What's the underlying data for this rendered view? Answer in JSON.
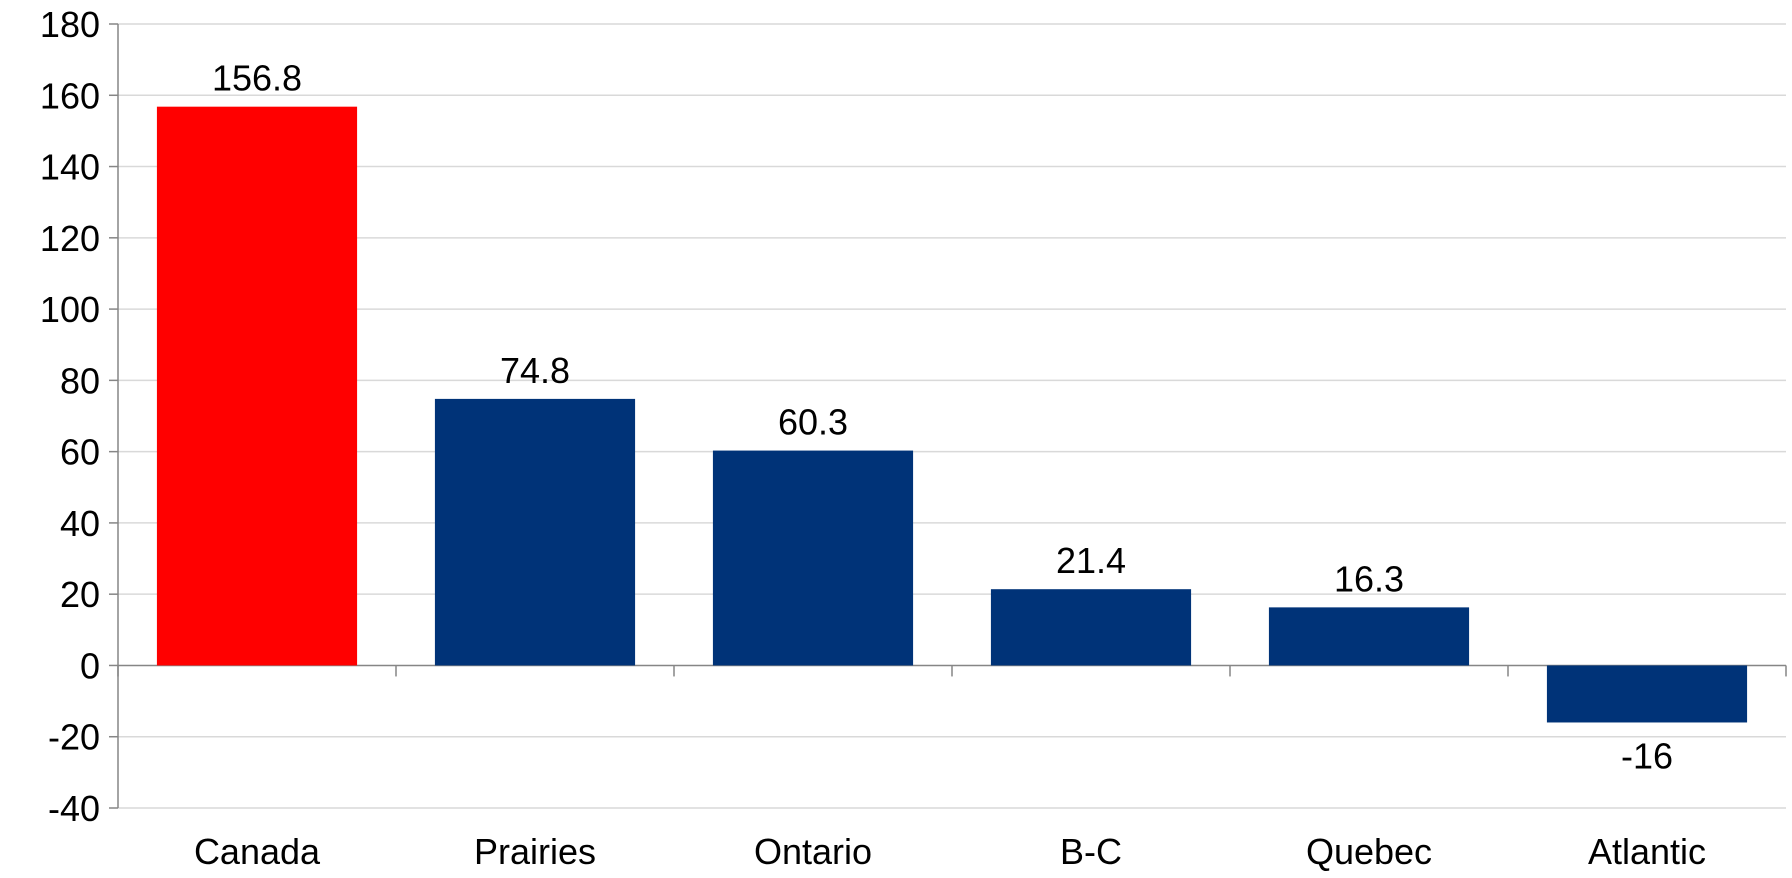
{
  "chart_data": {
    "type": "bar",
    "categories": [
      "Canada",
      "Prairies",
      "Ontario",
      "B-C",
      "Quebec",
      "Atlantic"
    ],
    "values": [
      156.8,
      74.8,
      60.3,
      21.4,
      16.3,
      -16
    ],
    "value_labels": [
      "156.8",
      "74.8",
      "60.3",
      "21.4",
      "16.3",
      "-16"
    ],
    "bar_colors": [
      "#ff0000",
      "#003378",
      "#003378",
      "#003378",
      "#003378",
      "#003378"
    ],
    "title": "",
    "xlabel": "",
    "ylabel": "",
    "ylim": [
      -40,
      180
    ],
    "yticks": [
      180,
      160,
      140,
      120,
      100,
      80,
      60,
      40,
      20,
      0,
      -20,
      -40
    ],
    "grid": true,
    "gridline_color": "#d9d9d9",
    "axis_color": "#868686",
    "legend": "none"
  }
}
